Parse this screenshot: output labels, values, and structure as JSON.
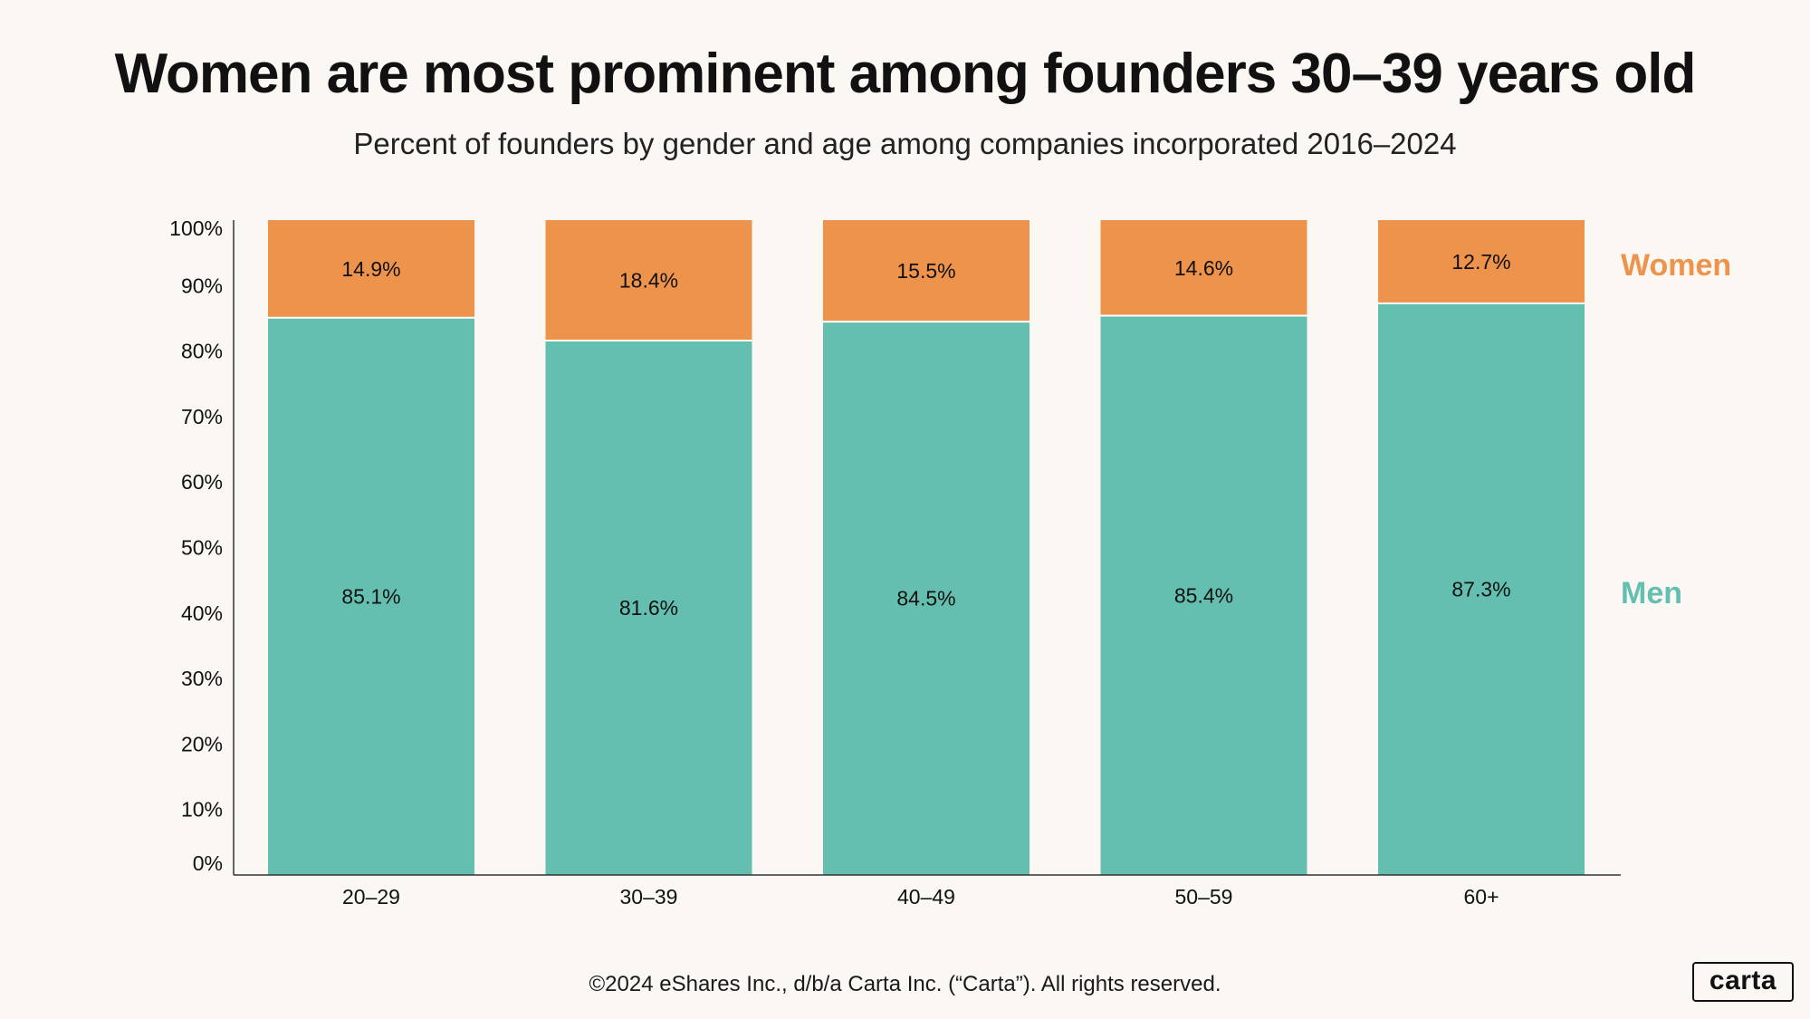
{
  "header": {
    "title": "Women are most prominent among founders 30–39 years old",
    "subtitle": "Percent of founders by gender and age among companies incorporated 2016–2024"
  },
  "footer": {
    "copyright": "©2024 eShares Inc., d/b/a Carta Inc. (“Carta”). All rights reserved.",
    "logo_text": "carta"
  },
  "colors": {
    "men": "#64BFB1",
    "women": "#EE934C",
    "axis": "#333333",
    "text": "#111111"
  },
  "chart_data": {
    "type": "bar",
    "stacked": true,
    "title": "Women are most prominent among founders 30–39 years old",
    "subtitle": "Percent of founders by gender and age among companies incorporated 2016–2024",
    "xlabel": "",
    "ylabel": "",
    "ylim": [
      0,
      100
    ],
    "yticks": [
      "0%",
      "10%",
      "20%",
      "30%",
      "40%",
      "50%",
      "60%",
      "70%",
      "80%",
      "90%",
      "100%"
    ],
    "categories": [
      "20–29",
      "30–39",
      "40–49",
      "50–59",
      "60+"
    ],
    "series": [
      {
        "name": "Men",
        "values": [
          85.1,
          81.6,
          84.5,
          85.4,
          87.3
        ],
        "labels": [
          "85.1%",
          "81.6%",
          "84.5%",
          "85.4%",
          "87.3%"
        ],
        "color": "#64BFB1"
      },
      {
        "name": "Women",
        "values": [
          14.9,
          18.4,
          15.5,
          14.6,
          12.7
        ],
        "labels": [
          "14.9%",
          "18.4%",
          "15.5%",
          "14.6%",
          "12.7%"
        ],
        "color": "#EE934C"
      }
    ],
    "legend_placement": "right",
    "grid": false
  }
}
